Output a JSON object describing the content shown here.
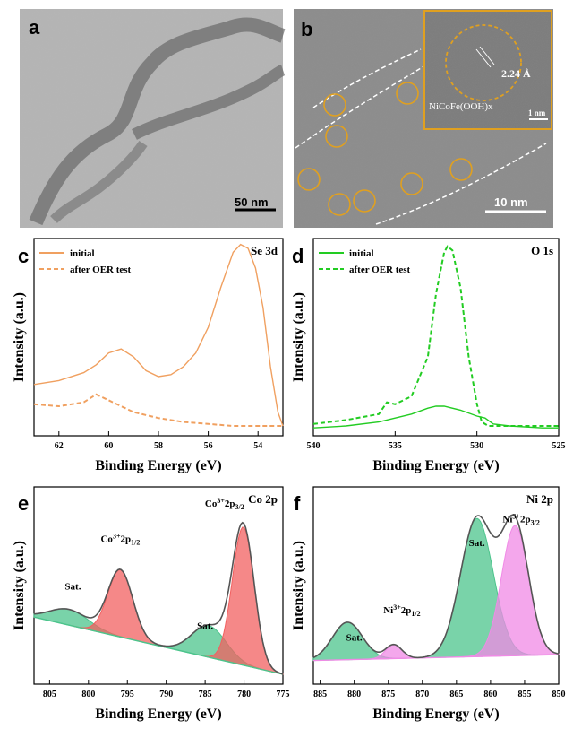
{
  "panels": {
    "a": {
      "label": "a",
      "scale_bar": "50 nm"
    },
    "b": {
      "label": "b",
      "scale_bar": "10 nm",
      "inset_scale": "1 nm",
      "inset_d_spacing": "2.24 Å",
      "inset_phase": "NiCoFe(OOH)x"
    }
  },
  "colors": {
    "orange": "#f0a060",
    "green": "#22cc22",
    "red_fill": "#f26060",
    "green_fill": "#4cc48c",
    "magenta_fill": "#f08ae6",
    "gold": "#e0a020",
    "envelope": "#555555"
  },
  "chart_data": [
    {
      "panel": "c",
      "type": "line",
      "corner_label": "Se 3d",
      "xlabel": "Binding Energy (eV)",
      "ylabel": "Intensity (a.u.)",
      "xlim": [
        63,
        53
      ],
      "x_ticks": [
        62,
        60,
        58,
        56,
        54
      ],
      "series": [
        {
          "name": "initial",
          "style": "solid",
          "x": [
            63,
            62,
            61,
            60.5,
            60,
            59.5,
            59,
            58.5,
            58,
            57.5,
            57,
            56.5,
            56,
            55.5,
            55,
            54.7,
            54.4,
            54.1,
            53.8,
            53.5,
            53.2,
            53
          ],
          "y": [
            0.26,
            0.28,
            0.32,
            0.36,
            0.42,
            0.44,
            0.4,
            0.33,
            0.3,
            0.31,
            0.35,
            0.42,
            0.55,
            0.75,
            0.93,
            0.97,
            0.95,
            0.85,
            0.65,
            0.35,
            0.12,
            0.05
          ]
        },
        {
          "name": "after OER test",
          "style": "dashed",
          "x": [
            63,
            62,
            61,
            60.5,
            60,
            59.5,
            59,
            58,
            57,
            56,
            55,
            54,
            53
          ],
          "y": [
            0.16,
            0.15,
            0.17,
            0.21,
            0.18,
            0.15,
            0.12,
            0.09,
            0.07,
            0.06,
            0.05,
            0.05,
            0.05
          ]
        }
      ]
    },
    {
      "panel": "d",
      "type": "line",
      "corner_label": "O 1s",
      "xlabel": "Binding Energy (eV)",
      "ylabel": "Intensity (a.u.)",
      "xlim": [
        540,
        525
      ],
      "x_ticks": [
        540,
        535,
        530,
        525
      ],
      "series": [
        {
          "name": "initial",
          "style": "solid",
          "x": [
            540,
            538,
            536,
            534,
            533,
            532.5,
            532,
            531,
            530,
            529.5,
            529,
            528,
            526,
            525
          ],
          "y": [
            0.04,
            0.05,
            0.07,
            0.11,
            0.14,
            0.15,
            0.15,
            0.13,
            0.1,
            0.09,
            0.06,
            0.05,
            0.04,
            0.04
          ]
        },
        {
          "name": "after OER test",
          "style": "dashed",
          "x": [
            540,
            538,
            536,
            535.5,
            535,
            534,
            533,
            532.5,
            532,
            531.8,
            531.5,
            531,
            530.5,
            530,
            529.7,
            529.3,
            528,
            526,
            525
          ],
          "y": [
            0.06,
            0.08,
            0.11,
            0.17,
            0.16,
            0.2,
            0.4,
            0.72,
            0.93,
            0.96,
            0.94,
            0.75,
            0.4,
            0.16,
            0.07,
            0.05,
            0.05,
            0.05,
            0.05
          ]
        }
      ]
    },
    {
      "panel": "e",
      "type": "area",
      "corner_label": "Co 2p",
      "xlabel": "Binding Energy (eV)",
      "ylabel": "Intensity (a.u.)",
      "xlim": [
        807,
        775
      ],
      "x_ticks": [
        805,
        800,
        795,
        790,
        785,
        780,
        775
      ],
      "background": {
        "x": [
          807,
          775
        ],
        "y": [
          0.34,
          0.05
        ]
      },
      "peaks": [
        {
          "name": "Sat.",
          "center": 802.5,
          "amplitude": 0.08,
          "width": 2.5,
          "fill": "green"
        },
        {
          "name": "Co3+2p1/2",
          "center": 795.9,
          "amplitude": 0.34,
          "width": 1.6,
          "fill": "red"
        },
        {
          "name": "Sat.",
          "center": 784.5,
          "amplitude": 0.16,
          "width": 2.2,
          "fill": "green"
        },
        {
          "name": "Co3+2p3/2",
          "center": 780.1,
          "amplitude": 0.7,
          "width": 1.4,
          "fill": "red"
        }
      ],
      "labels": [
        {
          "base": "Co",
          "sup": "3+",
          "mid": "2p",
          "sub": "1/2",
          "pos": [
            795.9,
            0.72
          ]
        },
        {
          "base": "Co",
          "sup": "3+",
          "mid": "2p",
          "sub": "3/2",
          "pos": [
            782.5,
            0.9
          ]
        },
        {
          "base": "Sat.",
          "sup": "",
          "mid": "",
          "sub": "",
          "pos": [
            802.0,
            0.48
          ]
        },
        {
          "base": "Sat.",
          "sup": "",
          "mid": "",
          "sub": "",
          "pos": [
            785.0,
            0.28
          ]
        }
      ]
    },
    {
      "panel": "f",
      "type": "area",
      "corner_label": "Ni 2p",
      "xlabel": "Binding Energy (eV)",
      "ylabel": "Intensity (a.u.)",
      "xlim": [
        886,
        850
      ],
      "x_ticks": [
        885,
        880,
        875,
        870,
        865,
        860,
        855,
        850
      ],
      "background": {
        "x": [
          886,
          850
        ],
        "y": [
          0.12,
          0.15
        ]
      },
      "peaks": [
        {
          "name": "Sat.",
          "center": 881,
          "amplitude": 0.19,
          "width": 2.2,
          "fill": "green"
        },
        {
          "name": "Ni3+2p1/2",
          "center": 874.2,
          "amplitude": 0.07,
          "width": 1.2,
          "fill": "magenta"
        },
        {
          "name": "Sat.",
          "center": 862.0,
          "amplitude": 0.7,
          "width": 2.4,
          "fill": "green"
        },
        {
          "name": "Ni3+2p3/2",
          "center": 856.4,
          "amplitude": 0.66,
          "width": 2.0,
          "fill": "magenta"
        }
      ],
      "labels": [
        {
          "base": "Sat.",
          "sup": "",
          "mid": "",
          "sub": "",
          "pos": [
            880.0,
            0.22
          ]
        },
        {
          "base": "Ni",
          "sup": "3+",
          "mid": "2p",
          "sub": "1/2",
          "pos": [
            873.0,
            0.36
          ]
        },
        {
          "base": "Sat.",
          "sup": "",
          "mid": "",
          "sub": "",
          "pos": [
            862.0,
            0.7
          ]
        },
        {
          "base": "Ni",
          "sup": "3+",
          "mid": "2p",
          "sub": "3/2",
          "pos": [
            855.5,
            0.82
          ]
        }
      ]
    }
  ]
}
